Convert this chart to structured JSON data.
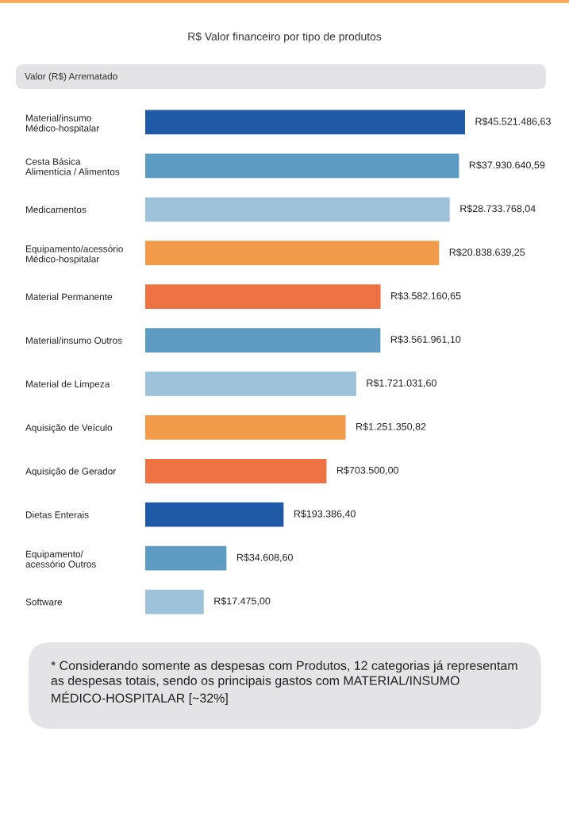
{
  "chart_data": {
    "type": "bar",
    "orientation": "horizontal",
    "title": "R$ Valor financeiro por tipo de produtos",
    "subtitle": "Valor (R$) Arrematado",
    "categories": [
      "Material/insumo\nMédico-hospitalar",
      "Cesta Básica\nAlimentícia / Alimentos",
      "Medicamentos",
      "Equipamento/acessório\nMédico-hospitalar",
      "Material Permanente",
      "Material/insumo Outros",
      "Material de Limpeza",
      "Aquisição de Veículo",
      "Aquisição de Gerador",
      "Dietas Enterais",
      "Equipamento/\nacessório Outros",
      "Software"
    ],
    "values": [
      45521486.63,
      37930640.59,
      28733768.04,
      20838639.25,
      3582160.65,
      3561961.1,
      1721031.6,
      1251350.82,
      703500.0,
      193386.4,
      34608.6,
      17475.0
    ],
    "colors": [
      "#2059a6",
      "#5e9bc2",
      "#9fc2db",
      "#f29b4b",
      "#ee7143",
      "#5e9bc2",
      "#9fc2db",
      "#f29b4b",
      "#ee7143",
      "#2059a6",
      "#5e9bc2",
      "#9fc2db"
    ],
    "value_labels": [
      "R$45.521.486,63",
      "R$37.930.640,59",
      "R$28.733.768,04",
      "R$20.838.639,25",
      "R$3.582.160,65",
      "R$3.561.961,10",
      "R$1.721.031,60",
      "R$1.251.350,82",
      "R$703.500,00",
      "R$193.386,40",
      "R$34.608,60",
      "R$17.475,00"
    ],
    "log": "x",
    "xlim": [
      3000,
      45521486.63
    ],
    "tick_labels": "y",
    "annotations": [
      "* Considerando somente as despesas com Produtos, 12 categorias já representam as despesas totais, sendo os principais gastos com MATERIAL/INSUMO MÉDICO-HOSPITALAR [~32%]"
    ]
  }
}
